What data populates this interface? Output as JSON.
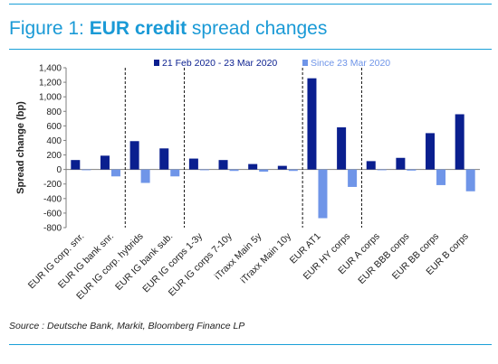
{
  "title": {
    "prefix": "Figure 1: ",
    "bold": "EUR credit",
    "suffix": " spread changes"
  },
  "source": "Source : Deutsche Bank, Markit, Bloomberg Finance LP",
  "colors": {
    "accent": "#1a9ad6",
    "series1": "#0a1f8f",
    "series2": "#6f95e8"
  },
  "chart_data": {
    "type": "bar",
    "ylabel": "Spread change (bp)",
    "ylim": [
      -800,
      1400
    ],
    "yticks": [
      1400,
      1200,
      1000,
      800,
      600,
      400,
      200,
      0,
      -200,
      -400,
      -600,
      -800
    ],
    "ytick_labels": [
      "1,400",
      "1,200",
      "1,000",
      "800",
      "600",
      "400",
      "200",
      "0",
      "-200",
      "-400",
      "-600",
      "-800"
    ],
    "categories": [
      "EUR IG corp. snr.",
      "EUR IG bank snr.",
      "EUR IG corp. hybrids",
      "EUR IG bank sub.",
      "EUR IG corps 1-3y",
      "EUR IG corps 7-10y",
      "iTraxx Main 5y",
      "iTraxx Main 10y",
      "EUR AT1",
      "EUR HY corps",
      "EUR A corps",
      "EUR BBB corps",
      "EUR BB corps",
      "EUR B corps"
    ],
    "series": [
      {
        "name": "21 Feb 2020 - 23 Mar 2020",
        "values": [
          130,
          190,
          390,
          290,
          150,
          130,
          75,
          50,
          1255,
          580,
          115,
          160,
          500,
          760
        ]
      },
      {
        "name": "Since 23 Mar 2020",
        "values": [
          -10,
          -95,
          -185,
          -95,
          -10,
          -20,
          -30,
          -20,
          -670,
          -240,
          -10,
          -15,
          -215,
          -300
        ]
      }
    ],
    "group_dividers_after_index": [
      1,
      3,
      7,
      9
    ],
    "legend_position": "top",
    "grid": false
  }
}
